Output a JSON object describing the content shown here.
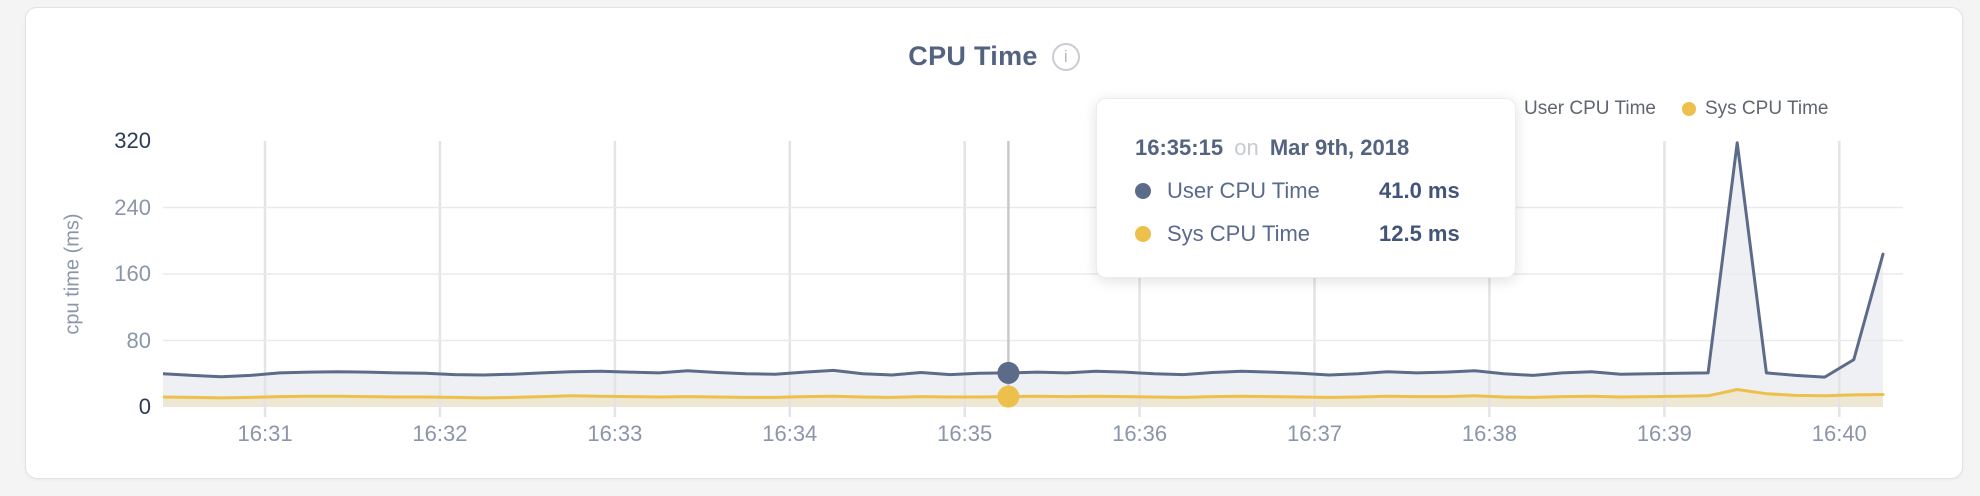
{
  "card": {
    "title": "CPU Time",
    "info_icon": "i"
  },
  "tooltip": {
    "time": "16:35:15",
    "conjunction": "on",
    "date": "Mar 9th, 2018",
    "rows": [
      {
        "label": "User CPU Time",
        "value": "41.0 ms"
      },
      {
        "label": "Sys CPU Time",
        "value": "12.5 ms"
      }
    ]
  },
  "chart_data": {
    "type": "area",
    "title": "CPU Time",
    "xlabel": "",
    "ylabel": "cpu time (ms)",
    "ylim": [
      0,
      320
    ],
    "y_ticks": [
      0,
      80,
      160,
      240,
      320
    ],
    "x_ticks": [
      "16:31",
      "16:32",
      "16:33",
      "16:34",
      "16:35",
      "16:36",
      "16:37",
      "16:38",
      "16:39",
      "16:40"
    ],
    "grid": true,
    "legend_position": "top-right",
    "x": [
      "16:30:25",
      "16:30:35",
      "16:30:45",
      "16:30:55",
      "16:31:05",
      "16:31:15",
      "16:31:25",
      "16:31:35",
      "16:31:45",
      "16:31:55",
      "16:32:05",
      "16:32:15",
      "16:32:25",
      "16:32:35",
      "16:32:45",
      "16:32:55",
      "16:33:05",
      "16:33:15",
      "16:33:25",
      "16:33:35",
      "16:33:45",
      "16:33:55",
      "16:34:05",
      "16:34:15",
      "16:34:25",
      "16:34:35",
      "16:34:45",
      "16:34:55",
      "16:35:05",
      "16:35:15",
      "16:35:25",
      "16:35:35",
      "16:35:45",
      "16:35:55",
      "16:36:05",
      "16:36:15",
      "16:36:25",
      "16:36:35",
      "16:36:45",
      "16:36:55",
      "16:37:05",
      "16:37:15",
      "16:37:25",
      "16:37:35",
      "16:37:45",
      "16:37:55",
      "16:38:05",
      "16:38:15",
      "16:38:25",
      "16:38:35",
      "16:38:45",
      "16:38:55",
      "16:39:05",
      "16:39:15",
      "16:39:25",
      "16:39:35",
      "16:39:45",
      "16:39:55",
      "16:40:05",
      "16:40:15"
    ],
    "series": [
      {
        "name": "User CPU Time",
        "color": "#5d6b8a",
        "fill": "rgba(93,107,138,0.10)",
        "values": [
          40,
          38,
          36.5,
          38,
          41,
          42,
          42.5,
          42,
          41,
          40.5,
          39,
          38.5,
          39.5,
          41,
          42.5,
          43,
          42,
          41,
          43.5,
          41.5,
          40,
          39.5,
          42,
          44,
          40,
          38.5,
          41.5,
          39,
          40.5,
          41,
          42,
          41,
          43,
          42,
          40,
          39,
          41.5,
          43,
          42,
          40.5,
          38.5,
          40,
          42.5,
          41,
          42,
          43.5,
          40,
          38,
          41,
          42.5,
          39.5,
          40,
          40.5,
          41,
          318,
          41,
          38,
          36,
          57,
          184
        ]
      },
      {
        "name": "Sys CPU Time",
        "color": "#ecc04a",
        "fill": "rgba(236,192,74,0.18)",
        "values": [
          12,
          11.5,
          11,
          11.5,
          12.5,
          13,
          13,
          12.5,
          12,
          12,
          11.5,
          11,
          11.5,
          12.5,
          13.5,
          13,
          12.5,
          12,
          12.5,
          12,
          11.5,
          11.5,
          12.5,
          13,
          12,
          11.5,
          12.5,
          12,
          12,
          12.5,
          13,
          12.5,
          13,
          12.5,
          12,
          11.5,
          12.5,
          13,
          12.5,
          12,
          11.5,
          12,
          13,
          12.5,
          12.5,
          13.5,
          12,
          11.5,
          12.5,
          13,
          12,
          12.5,
          13,
          13.5,
          21,
          16,
          14,
          13.5,
          14.5,
          15
        ]
      }
    ],
    "hover_point": {
      "time": "16:35:15",
      "user_ms": 41.0,
      "sys_ms": 12.5
    }
  }
}
